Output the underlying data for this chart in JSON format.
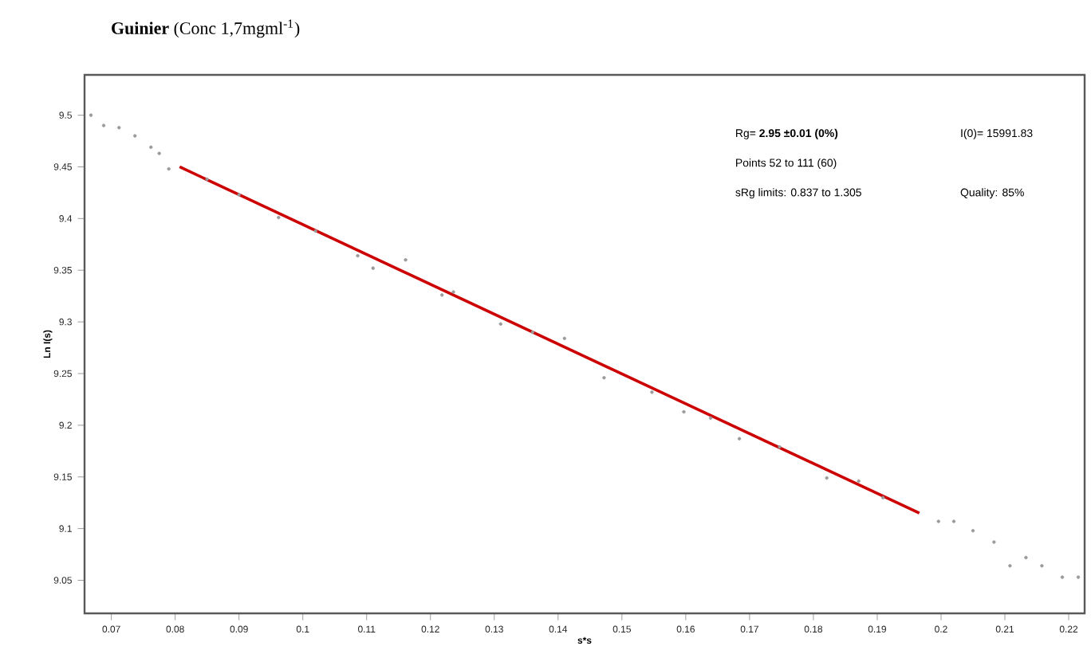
{
  "chart_data": {
    "type": "scatter",
    "title": "**Guinier** (Conc 1,7mgml$^{-1}$)",
    "xlabel": "s*s",
    "ylabel": "Ln I(s)",
    "series": [
      {
        "color": "#9a9a9a",
        "marker": "circle",
        "x": [
          0.0668,
          0.0688,
          0.0712,
          0.0737,
          0.0762,
          0.0775,
          0.079,
          0.085,
          0.09,
          0.0962,
          0.102,
          0.1086,
          0.111,
          0.1161,
          0.1218,
          0.1236,
          0.131,
          0.136,
          0.141,
          0.1472,
          0.1547,
          0.1597,
          0.1639,
          0.1684,
          0.1747,
          0.1821,
          0.1871,
          0.1909,
          0.1996,
          0.202,
          0.205,
          0.2083,
          0.2108,
          0.2133,
          0.2158,
          0.219,
          0.2215
        ],
        "values": [
          9.5,
          9.49,
          9.488,
          9.48,
          9.469,
          9.463,
          9.448,
          9.438,
          9.423,
          9.401,
          9.388,
          9.364,
          9.352,
          9.36,
          9.326,
          9.329,
          9.298,
          9.29,
          9.284,
          9.246,
          9.232,
          9.213,
          9.207,
          9.187,
          9.179,
          9.149,
          9.146,
          9.13,
          9.107,
          9.107,
          9.098,
          9.087,
          9.064,
          9.072,
          9.064,
          9.053,
          9.053
        ]
      },
      {
        "type": "line",
        "color": "#cc0000",
        "marker": "none",
        "line_style": "solid",
        "x": [
          0.0807,
          0.1966
        ],
        "values": [
          9.45,
          9.115
        ]
      }
    ],
    "xlim": [
      0.0658,
      0.2225
    ],
    "ylim": [
      9.018,
      9.539
    ],
    "xticks": [
      0.07,
      0.08,
      0.09,
      0.1,
      0.11,
      0.12,
      0.13,
      0.14,
      0.15,
      0.16,
      0.17,
      0.18,
      0.19,
      0.2,
      0.21,
      0.22
    ],
    "yticks": [
      9.05,
      9.1,
      9.15,
      9.2,
      9.25,
      9.3,
      9.35,
      9.4,
      9.45,
      9.5
    ],
    "grid": false,
    "annotations": [
      "Rg= **2.95 ±0.01 (0%)**",
      "Points 52 to 111 (60)",
      "sRg limits: 0.837 to 1.305",
      "I(0)= 15991.83",
      "Quality: 85%"
    ]
  }
}
